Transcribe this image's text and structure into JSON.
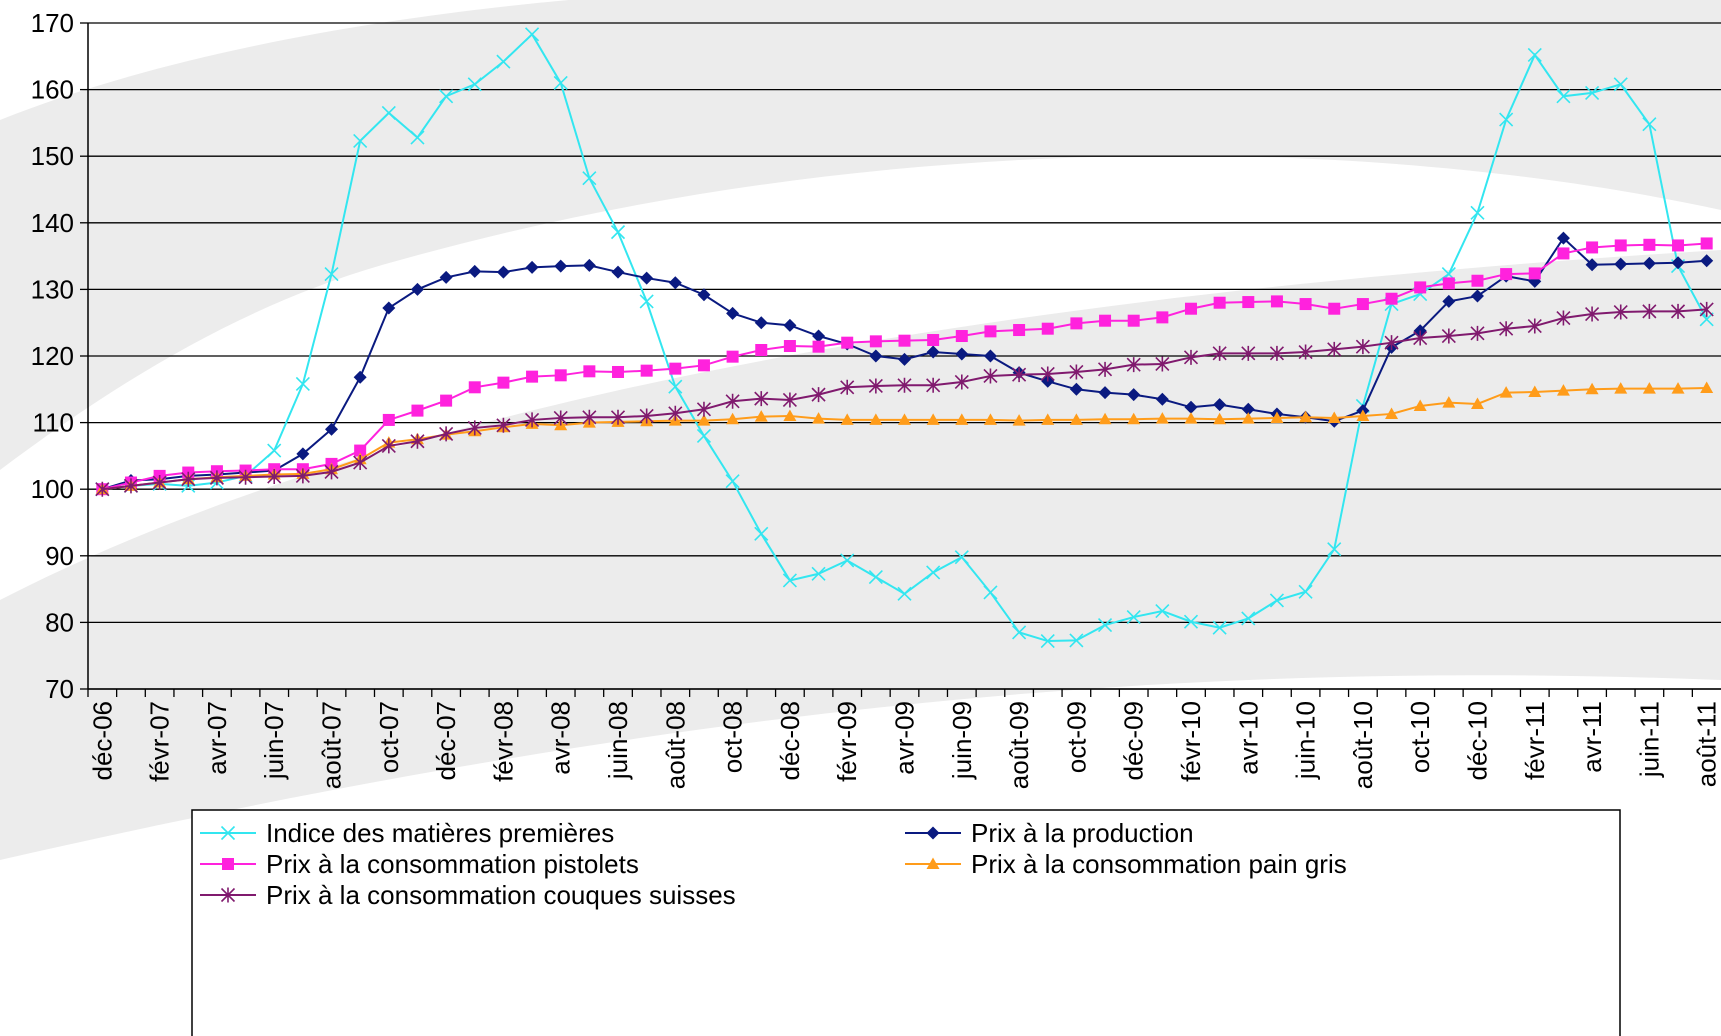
{
  "chart_data": {
    "type": "line",
    "categories": [
      "déc-06",
      null,
      "févr-07",
      null,
      "avr-07",
      null,
      "juin-07",
      null,
      "août-07",
      null,
      "oct-07",
      null,
      "déc-07",
      null,
      "févr-08",
      null,
      "avr-08",
      null,
      "juin-08",
      null,
      "août-08",
      null,
      "oct-08",
      null,
      "déc-08",
      null,
      "févr-09",
      null,
      "avr-09",
      null,
      "juin-09",
      null,
      "août-09",
      null,
      "oct-09",
      null,
      "déc-09",
      null,
      "févr-10",
      null,
      "avr-10",
      null,
      "juin-10",
      null,
      "août-10",
      null,
      "oct-10",
      null,
      "déc-10",
      null,
      "févr-11",
      null,
      "avr-11",
      null,
      "juin-11",
      null,
      "août-11"
    ],
    "series": [
      {
        "name": "Indice des matières premières",
        "color": "#33e6f0",
        "marker": "x",
        "values": [
          100,
          100.5,
          100.8,
          100.5,
          101,
          102,
          105.8,
          115.8,
          132.3,
          152.3,
          156.5,
          152.8,
          159,
          160.8,
          164.2,
          168.3,
          161,
          146.7,
          138.6,
          128.2,
          115.4,
          108,
          101.2,
          93.3,
          86.3,
          87.3,
          89.3,
          86.8,
          84.3,
          87.5,
          89.8,
          84.5,
          78.5,
          77.2,
          77.3,
          79.6,
          80.8,
          81.7,
          80.1,
          79.2,
          80.6,
          83.3,
          84.6,
          91,
          112.5,
          127.8,
          129.3,
          132.3,
          141.5,
          155.5,
          165.2,
          159,
          159.5,
          160.8,
          154.8,
          133.5,
          125.5
        ]
      },
      {
        "name": "Prix à la production",
        "color": "#0a1a80",
        "marker": "diamond",
        "values": [
          100,
          101.3,
          101.5,
          102,
          102.2,
          102.5,
          102.8,
          105.3,
          109,
          116.8,
          127.2,
          130,
          131.8,
          132.7,
          132.6,
          133.3,
          133.5,
          133.6,
          132.6,
          131.7,
          131,
          129.2,
          126.4,
          125,
          124.6,
          123,
          121.8,
          120,
          119.5,
          120.6,
          120.3,
          120,
          117.5,
          116.2,
          115,
          114.5,
          114.2,
          113.5,
          112.3,
          112.7,
          112,
          111.3,
          110.8,
          110.2,
          111.8,
          121.3,
          123.8,
          128.2,
          129,
          132,
          131.2,
          137.7,
          133.7,
          133.8,
          133.9,
          134,
          134.3
        ]
      },
      {
        "name": "Prix à la consommation pistolets",
        "color": "#ff22dd",
        "marker": "square",
        "values": [
          100,
          101,
          102,
          102.5,
          102.7,
          102.8,
          103,
          103,
          103.8,
          105.8,
          110.4,
          111.8,
          113.3,
          115.3,
          116,
          116.9,
          117.1,
          117.7,
          117.6,
          117.8,
          118.1,
          118.6,
          119.9,
          120.9,
          121.5,
          121.4,
          122,
          122.2,
          122.3,
          122.4,
          123,
          123.7,
          123.9,
          124.1,
          124.9,
          125.3,
          125.3,
          125.8,
          127.1,
          128,
          128.1,
          128.2,
          127.8,
          127.1,
          127.8,
          128.6,
          130.3,
          130.9,
          131.3,
          132.3,
          132.4,
          135.4,
          136.3,
          136.6,
          136.7,
          136.6,
          136.9
        ]
      },
      {
        "name": "Prix à la consommation pain gris",
        "color": "#ff9c1a",
        "marker": "triangle",
        "values": [
          100,
          100.5,
          101,
          101.5,
          101.8,
          102,
          102.2,
          102.3,
          103,
          104.5,
          107,
          107.5,
          108.2,
          108.7,
          109.3,
          109.8,
          109.6,
          110,
          110.1,
          110.2,
          110.3,
          110.3,
          110.5,
          110.9,
          111,
          110.6,
          110.4,
          110.4,
          110.4,
          110.4,
          110.4,
          110.4,
          110.3,
          110.4,
          110.4,
          110.5,
          110.5,
          110.6,
          110.6,
          110.5,
          110.6,
          110.7,
          110.8,
          110.7,
          111,
          111.3,
          112.5,
          113,
          112.8,
          114.5,
          114.6,
          114.8,
          115,
          115.1,
          115.1,
          115.1,
          115.2
        ]
      },
      {
        "name": "Prix à la consommation couques suisses",
        "color": "#801a6e",
        "marker": "star",
        "values": [
          100,
          100.5,
          101,
          101.5,
          101.7,
          101.8,
          101.9,
          102,
          102.6,
          104,
          106.5,
          107.2,
          108.3,
          109.2,
          109.6,
          110.4,
          110.7,
          110.8,
          110.8,
          111,
          111.4,
          112,
          113.2,
          113.6,
          113.4,
          114.2,
          115.3,
          115.5,
          115.6,
          115.6,
          116.1,
          117,
          117.2,
          117.3,
          117.6,
          118,
          118.7,
          118.8,
          119.8,
          120.4,
          120.4,
          120.4,
          120.6,
          121,
          121.4,
          122,
          122.7,
          123,
          123.4,
          124.1,
          124.5,
          125.7,
          126.3,
          126.6,
          126.7,
          126.7,
          127
        ]
      }
    ],
    "ylim": [
      70,
      170
    ],
    "yticks": [
      70,
      80,
      90,
      100,
      110,
      120,
      130,
      140,
      150,
      160,
      170
    ],
    "grid": true,
    "legend": "bottom"
  }
}
